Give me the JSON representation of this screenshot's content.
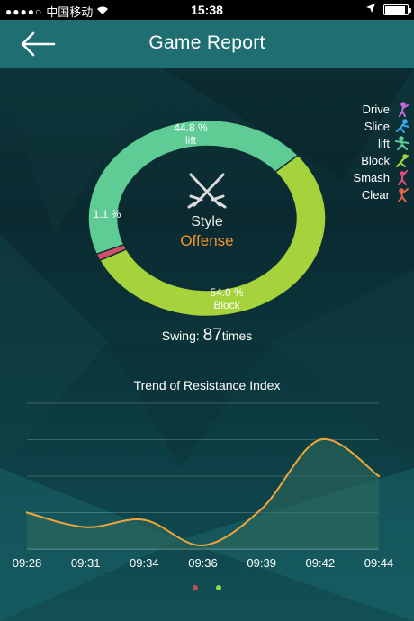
{
  "status_bar": {
    "carrier": "中国移动",
    "time": "15:38",
    "signal_dots": "●●●●○",
    "battery_level": 0.9
  },
  "header": {
    "title": "Game Report",
    "back_icon": "back-arrow-icon"
  },
  "donut": {
    "center_icon": "crossed-swords-icon",
    "style_label": "Style",
    "style_value": "Offense",
    "segments": [
      {
        "percent_label": "44.8 %",
        "name": "lift",
        "value": 44.8,
        "color": "#5fcc96"
      },
      {
        "percent_label": "54.0 %",
        "name": "Block",
        "value": 54.0,
        "color": "#a6d23c"
      },
      {
        "percent_label": "1.1 %",
        "name": "",
        "value": 1.1,
        "color": "#d0506a"
      }
    ]
  },
  "legend": [
    {
      "label": "Drive",
      "icon": "player-drive-icon",
      "color": "#c86ad6"
    },
    {
      "label": "Slice",
      "icon": "player-slice-icon",
      "color": "#3aa7e6"
    },
    {
      "label": "lift",
      "icon": "player-lift-icon",
      "color": "#5fcc96"
    },
    {
      "label": "Block",
      "icon": "player-block-icon",
      "color": "#a6d23c"
    },
    {
      "label": "Smash",
      "icon": "player-smash-icon",
      "color": "#e64a7a"
    },
    {
      "label": "Clear",
      "icon": "player-clear-icon",
      "color": "#e8624a"
    }
  ],
  "swing": {
    "label": "Swing:",
    "count": "87",
    "unit": "times"
  },
  "chart_data": {
    "type": "area",
    "title": "Trend of Resistance Index",
    "categories": [
      "09:28",
      "09:31",
      "09:34",
      "09:36",
      "09:39",
      "09:42",
      "09:44"
    ],
    "values": [
      1.0,
      0.6,
      0.8,
      0.1,
      1.1,
      3.0,
      2.0
    ],
    "ylim": [
      0,
      4
    ],
    "grid": true,
    "line_color": "#f0a43a"
  },
  "page_indicator": {
    "count": 2,
    "active_index": 1,
    "inactive_color": "#c84a54",
    "active_color": "#8fe04a"
  }
}
